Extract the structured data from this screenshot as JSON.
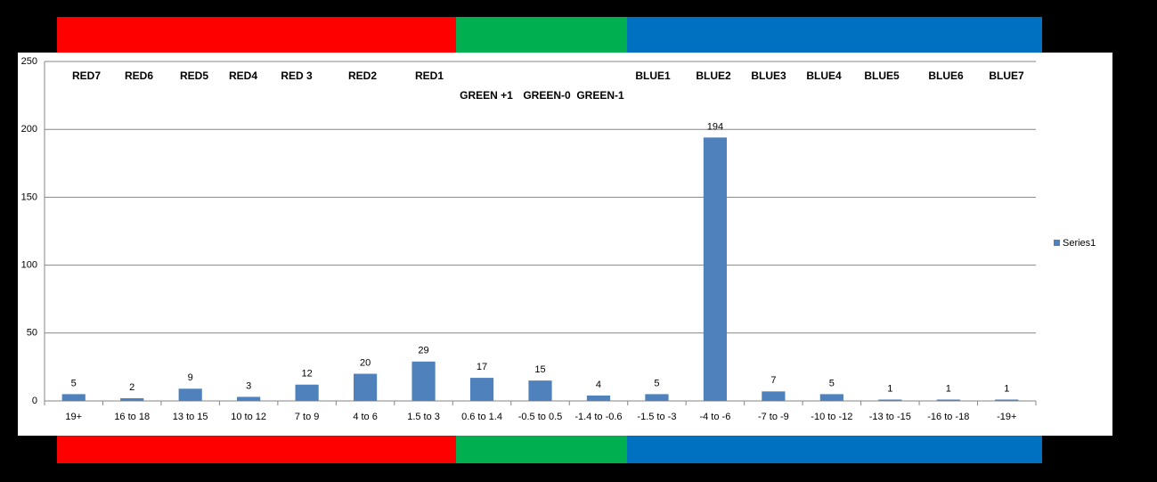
{
  "chart_data": {
    "type": "bar",
    "categories": [
      "19+",
      "16 to 18",
      "13 to 15",
      "10 to 12",
      "7 to 9",
      "4 to 6",
      "1.5 to 3",
      "0.6 to 1.4",
      "-0.5 to 0.5",
      "-1.4 to -0.6",
      "-1.5 to -3",
      "-4 to -6",
      "-7 to -9",
      "-10 to -12",
      "-13 to -15",
      "-16 to -18",
      "-19+"
    ],
    "series": [
      {
        "name": "Series1",
        "color": "#4f81bd",
        "values": [
          5,
          2,
          9,
          3,
          12,
          20,
          29,
          17,
          15,
          4,
          5,
          194,
          7,
          5,
          1,
          1,
          1
        ]
      }
    ],
    "ylim": [
      0,
      250
    ],
    "yticks": [
      0,
      50,
      100,
      150,
      200,
      250
    ],
    "grid": true,
    "legend": "right",
    "annotations": [
      "RED7",
      "RED6",
      "RED5",
      "RED4",
      "RED 3",
      "RED2",
      "RED1",
      "GREEN +1",
      "GREEN-0",
      "GREEN-1",
      "BLUE1",
      "BLUE2",
      "BLUE3",
      "BLUE4",
      "BLUE5",
      "BLUE6",
      "BLUE7"
    ]
  }
}
